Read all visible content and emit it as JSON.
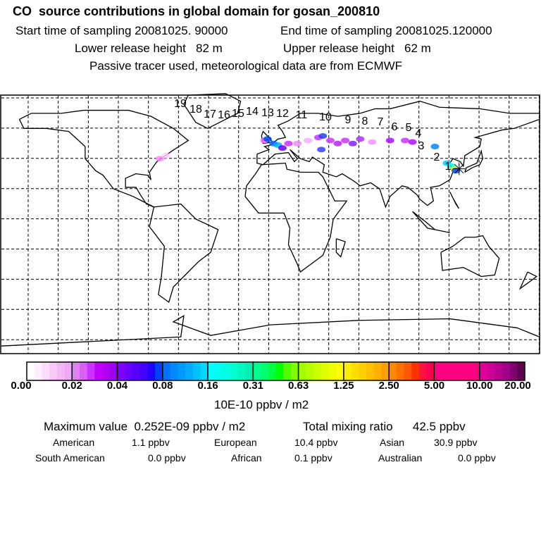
{
  "header": {
    "title": "CO  source contributions in global domain for gosan_200810",
    "start": "Start time of sampling 20081025. 90000",
    "end": "End time of sampling 20081025.120000",
    "lower": "Lower release height   82 m",
    "upper": "Upper release height   62 m",
    "note": "Passive tracer used, meteorological data are from ECMWF"
  },
  "chart_data": {
    "type": "heatmap",
    "title": "CO  source contributions in global domain for gosan_200810",
    "colorbar_ticks": [
      "0.00",
      "0.02",
      "0.04",
      "0.08",
      "0.16",
      "0.31",
      "0.63",
      "1.25",
      "2.50",
      "5.00",
      "10.00",
      "20.00"
    ],
    "colorbar_label": "10E-10 ppbv / m2",
    "trajectory_labels": [
      "1",
      "2",
      "3",
      "4",
      "5",
      "6",
      "7",
      "8",
      "9",
      "10",
      "11",
      "12",
      "13",
      "14",
      "15",
      "16",
      "17",
      "18",
      "19"
    ],
    "receptor": {
      "lon": 126.2,
      "lat": 33.3
    }
  },
  "summary": {
    "max_label": "Maximum value  0.252E-09 ppbv / m2",
    "total_label": "Total mixing ratio      42.5 ppbv",
    "rows": [
      [
        {
          "name": "American",
          "value": "1.1 ppbv"
        },
        {
          "name": "European",
          "value": "10.4 ppbv"
        },
        {
          "name": "Asian",
          "value": "30.9 ppbv"
        }
      ],
      [
        {
          "name": "South American",
          "value": "0.0 ppbv"
        },
        {
          "name": "African",
          "value": "0.1 ppbv"
        },
        {
          "name": "Australian",
          "value": "0.0 ppbv"
        }
      ]
    ]
  }
}
